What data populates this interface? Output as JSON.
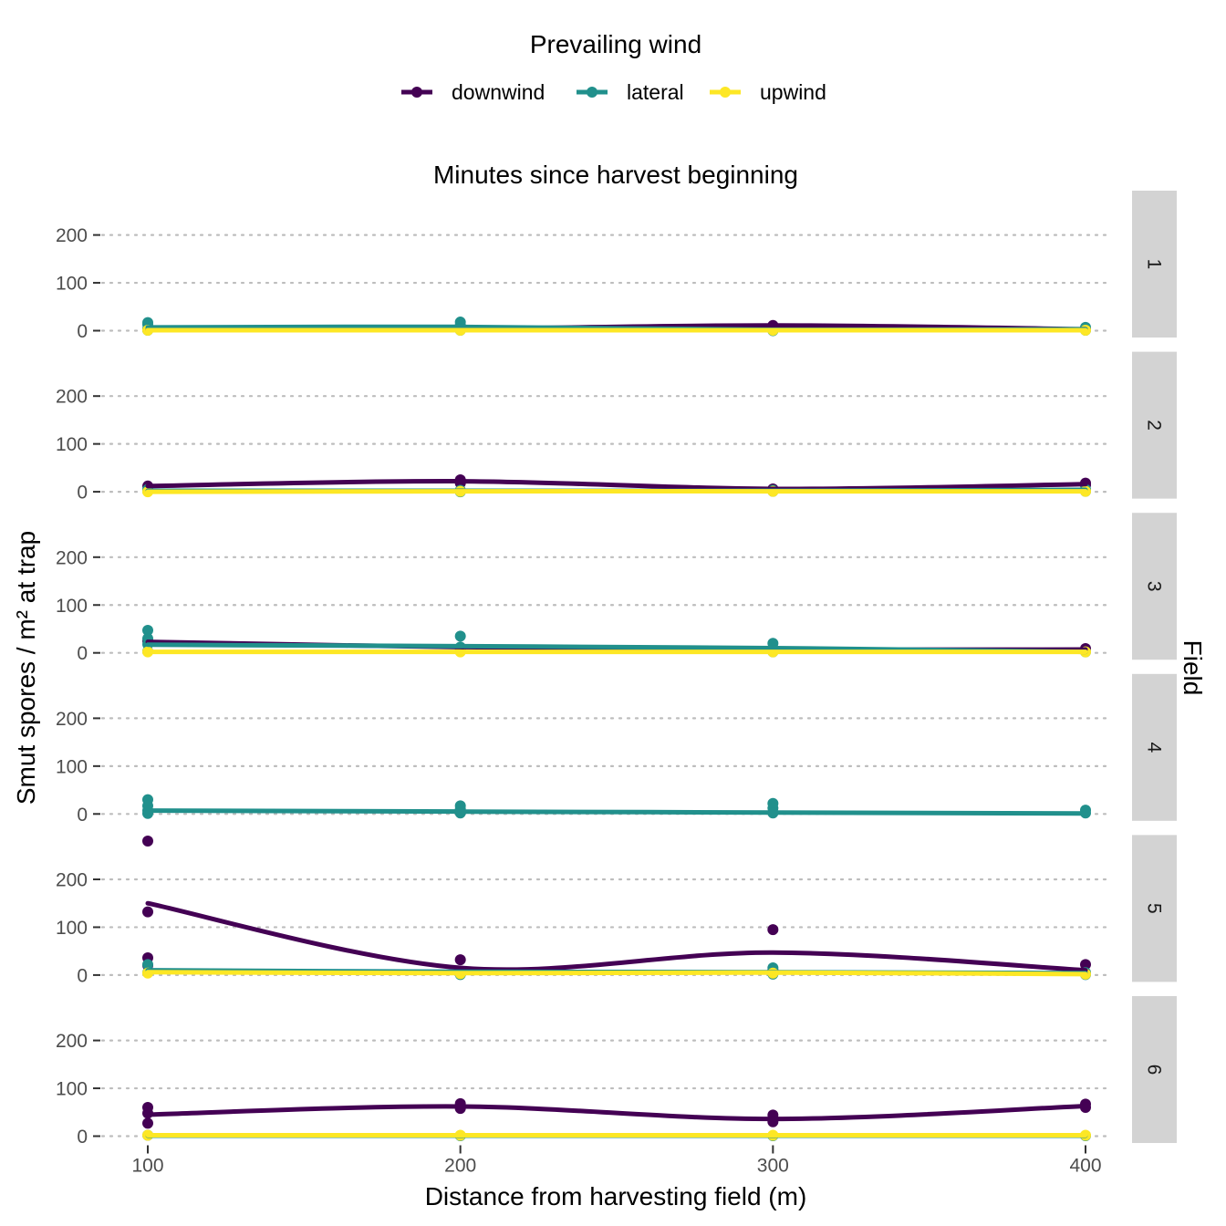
{
  "chart_data": {
    "type": "line",
    "title": "Minutes since harvest beginning",
    "xlabel": "Distance from harvesting field (m)",
    "ylabel": "Smut spores / m² at trap",
    "facet_label": "Field",
    "legend_title": "Prevailing wind",
    "legend_position": "top",
    "x_ticks": [
      100,
      200,
      300,
      400
    ],
    "y_ticks": [
      0,
      100,
      200
    ],
    "xlim": [
      83,
      1300.0
    ],
    "ylim": [
      -10,
      235
    ],
    "grid": true,
    "series": [
      {
        "name": "downwind",
        "color": "#440154"
      },
      {
        "name": "lateral",
        "color": "#21908C"
      },
      {
        "name": "upwind",
        "color": "#FDE725"
      }
    ],
    "panels": [
      {
        "label": "1",
        "lines": {
          "downwind": [
            [
              100,
              2
            ],
            [
              200,
              4
            ],
            [
              300,
              11
            ],
            [
              400,
              3
            ]
          ],
          "lateral": [
            [
              100,
              7
            ],
            [
              200,
              8
            ],
            [
              300,
              2
            ],
            [
              400,
              3
            ]
          ],
          "upwind": [
            [
              100,
              1
            ],
            [
              200,
              1
            ],
            [
              300,
              1
            ],
            [
              400,
              1
            ]
          ]
        },
        "points": {
          "downwind": [
            [
              100,
              2
            ],
            [
              200,
              4
            ],
            [
              300,
              11
            ],
            [
              300,
              3
            ],
            [
              400,
              3
            ]
          ],
          "lateral": [
            [
              100,
              17
            ],
            [
              100,
              13
            ],
            [
              100,
              4
            ],
            [
              100,
              1
            ],
            [
              200,
              18
            ],
            [
              200,
              12
            ],
            [
              200,
              4
            ],
            [
              200,
              1
            ],
            [
              300,
              2
            ],
            [
              300,
              0
            ],
            [
              400,
              7
            ],
            [
              400,
              1
            ]
          ],
          "upwind": [
            [
              100,
              1
            ],
            [
              200,
              1
            ],
            [
              300,
              1
            ],
            [
              400,
              1
            ]
          ]
        }
      },
      {
        "label": "2",
        "lines": {
          "downwind": [
            [
              100,
              12
            ],
            [
              200,
              22
            ],
            [
              300,
              6
            ],
            [
              400,
              16
            ]
          ],
          "lateral": [
            [
              100,
              2
            ],
            [
              200,
              2
            ],
            [
              300,
              2
            ],
            [
              400,
              4
            ]
          ],
          "upwind": [
            [
              100,
              0
            ],
            [
              200,
              1
            ],
            [
              300,
              1
            ],
            [
              400,
              1
            ]
          ]
        },
        "points": {
          "downwind": [
            [
              100,
              12
            ],
            [
              200,
              25
            ],
            [
              200,
              18
            ],
            [
              300,
              6
            ],
            [
              400,
              18
            ],
            [
              400,
              14
            ]
          ],
          "lateral": [
            [
              100,
              5
            ],
            [
              100,
              1
            ],
            [
              200,
              3
            ],
            [
              200,
              0
            ],
            [
              300,
              3
            ],
            [
              300,
              1
            ],
            [
              400,
              5
            ],
            [
              400,
              1
            ]
          ],
          "upwind": [
            [
              100,
              0
            ],
            [
              200,
              1
            ],
            [
              300,
              1
            ],
            [
              400,
              1
            ]
          ]
        }
      },
      {
        "label": "3",
        "lines": {
          "downwind": [
            [
              100,
              23
            ],
            [
              200,
              12
            ],
            [
              300,
              7
            ],
            [
              400,
              7
            ]
          ],
          "lateral": [
            [
              100,
              17
            ],
            [
              200,
              14
            ],
            [
              300,
              10
            ],
            [
              400,
              2
            ]
          ],
          "upwind": [
            [
              100,
              2
            ],
            [
              200,
              2
            ],
            [
              300,
              2
            ],
            [
              400,
              2
            ]
          ]
        },
        "points": {
          "downwind": [
            [
              100,
              25
            ],
            [
              200,
              10
            ],
            [
              300,
              8
            ],
            [
              400,
              9
            ]
          ],
          "lateral": [
            [
              100,
              47
            ],
            [
              100,
              30
            ],
            [
              100,
              18
            ],
            [
              100,
              3
            ],
            [
              200,
              35
            ],
            [
              200,
              12
            ],
            [
              200,
              3
            ],
            [
              300,
              20
            ],
            [
              300,
              8
            ],
            [
              300,
              2
            ],
            [
              400,
              2
            ]
          ],
          "upwind": [
            [
              100,
              2
            ],
            [
              200,
              2
            ],
            [
              300,
              2
            ],
            [
              400,
              2
            ]
          ]
        }
      },
      {
        "label": "4",
        "lines": {
          "lateral": [
            [
              100,
              7
            ],
            [
              200,
              5
            ],
            [
              300,
              3
            ],
            [
              400,
              1
            ]
          ]
        },
        "points": {
          "lateral": [
            [
              100,
              30
            ],
            [
              100,
              17
            ],
            [
              100,
              7
            ],
            [
              100,
              1
            ],
            [
              200,
              17
            ],
            [
              200,
              10
            ],
            [
              200,
              2
            ],
            [
              300,
              22
            ],
            [
              300,
              12
            ],
            [
              300,
              2
            ],
            [
              400,
              8
            ],
            [
              400,
              2
            ]
          ]
        }
      },
      {
        "label": "5",
        "lines": {
          "downwind": [
            [
              100,
              150
            ],
            [
              200,
              15
            ],
            [
              300,
              47
            ],
            [
              400,
              10
            ]
          ],
          "lateral": [
            [
              100,
              10
            ],
            [
              200,
              7
            ],
            [
              300,
              6
            ],
            [
              400,
              4
            ]
          ],
          "upwind": [
            [
              100,
              6
            ],
            [
              200,
              4
            ],
            [
              300,
              5
            ],
            [
              400,
              2
            ]
          ]
        },
        "points": {
          "downwind": [
            [
              100,
              280
            ],
            [
              100,
              132
            ],
            [
              100,
              36
            ],
            [
              100,
              20
            ],
            [
              200,
              32
            ],
            [
              300,
              95
            ],
            [
              300,
              10
            ],
            [
              400,
              22
            ]
          ],
          "lateral": [
            [
              100,
              22
            ],
            [
              100,
              5
            ],
            [
              200,
              5
            ],
            [
              200,
              1
            ],
            [
              300,
              15
            ],
            [
              300,
              2
            ],
            [
              400,
              5
            ],
            [
              400,
              1
            ]
          ],
          "upwind": [
            [
              100,
              4
            ],
            [
              200,
              3
            ],
            [
              300,
              4
            ],
            [
              400,
              2
            ]
          ]
        }
      },
      {
        "label": "6",
        "lines": {
          "downwind": [
            [
              100,
              45
            ],
            [
              200,
              62
            ],
            [
              300,
              36
            ],
            [
              400,
              63
            ]
          ],
          "lateral": [
            [
              100,
              1
            ],
            [
              200,
              1
            ],
            [
              300,
              1
            ],
            [
              400,
              1
            ]
          ],
          "upwind": [
            [
              100,
              2
            ],
            [
              200,
              2
            ],
            [
              300,
              2
            ],
            [
              400,
              2
            ]
          ]
        },
        "points": {
          "downwind": [
            [
              100,
              60
            ],
            [
              100,
              48
            ],
            [
              100,
              27
            ],
            [
              200,
              68
            ],
            [
              200,
              58
            ],
            [
              300,
              44
            ],
            [
              300,
              30
            ],
            [
              400,
              67
            ],
            [
              400,
              60
            ]
          ],
          "lateral": [
            [
              100,
              2
            ],
            [
              200,
              1
            ],
            [
              300,
              1
            ],
            [
              400,
              1
            ]
          ],
          "upwind": [
            [
              100,
              2
            ],
            [
              200,
              2
            ],
            [
              300,
              2
            ],
            [
              400,
              2
            ]
          ]
        }
      }
    ]
  }
}
